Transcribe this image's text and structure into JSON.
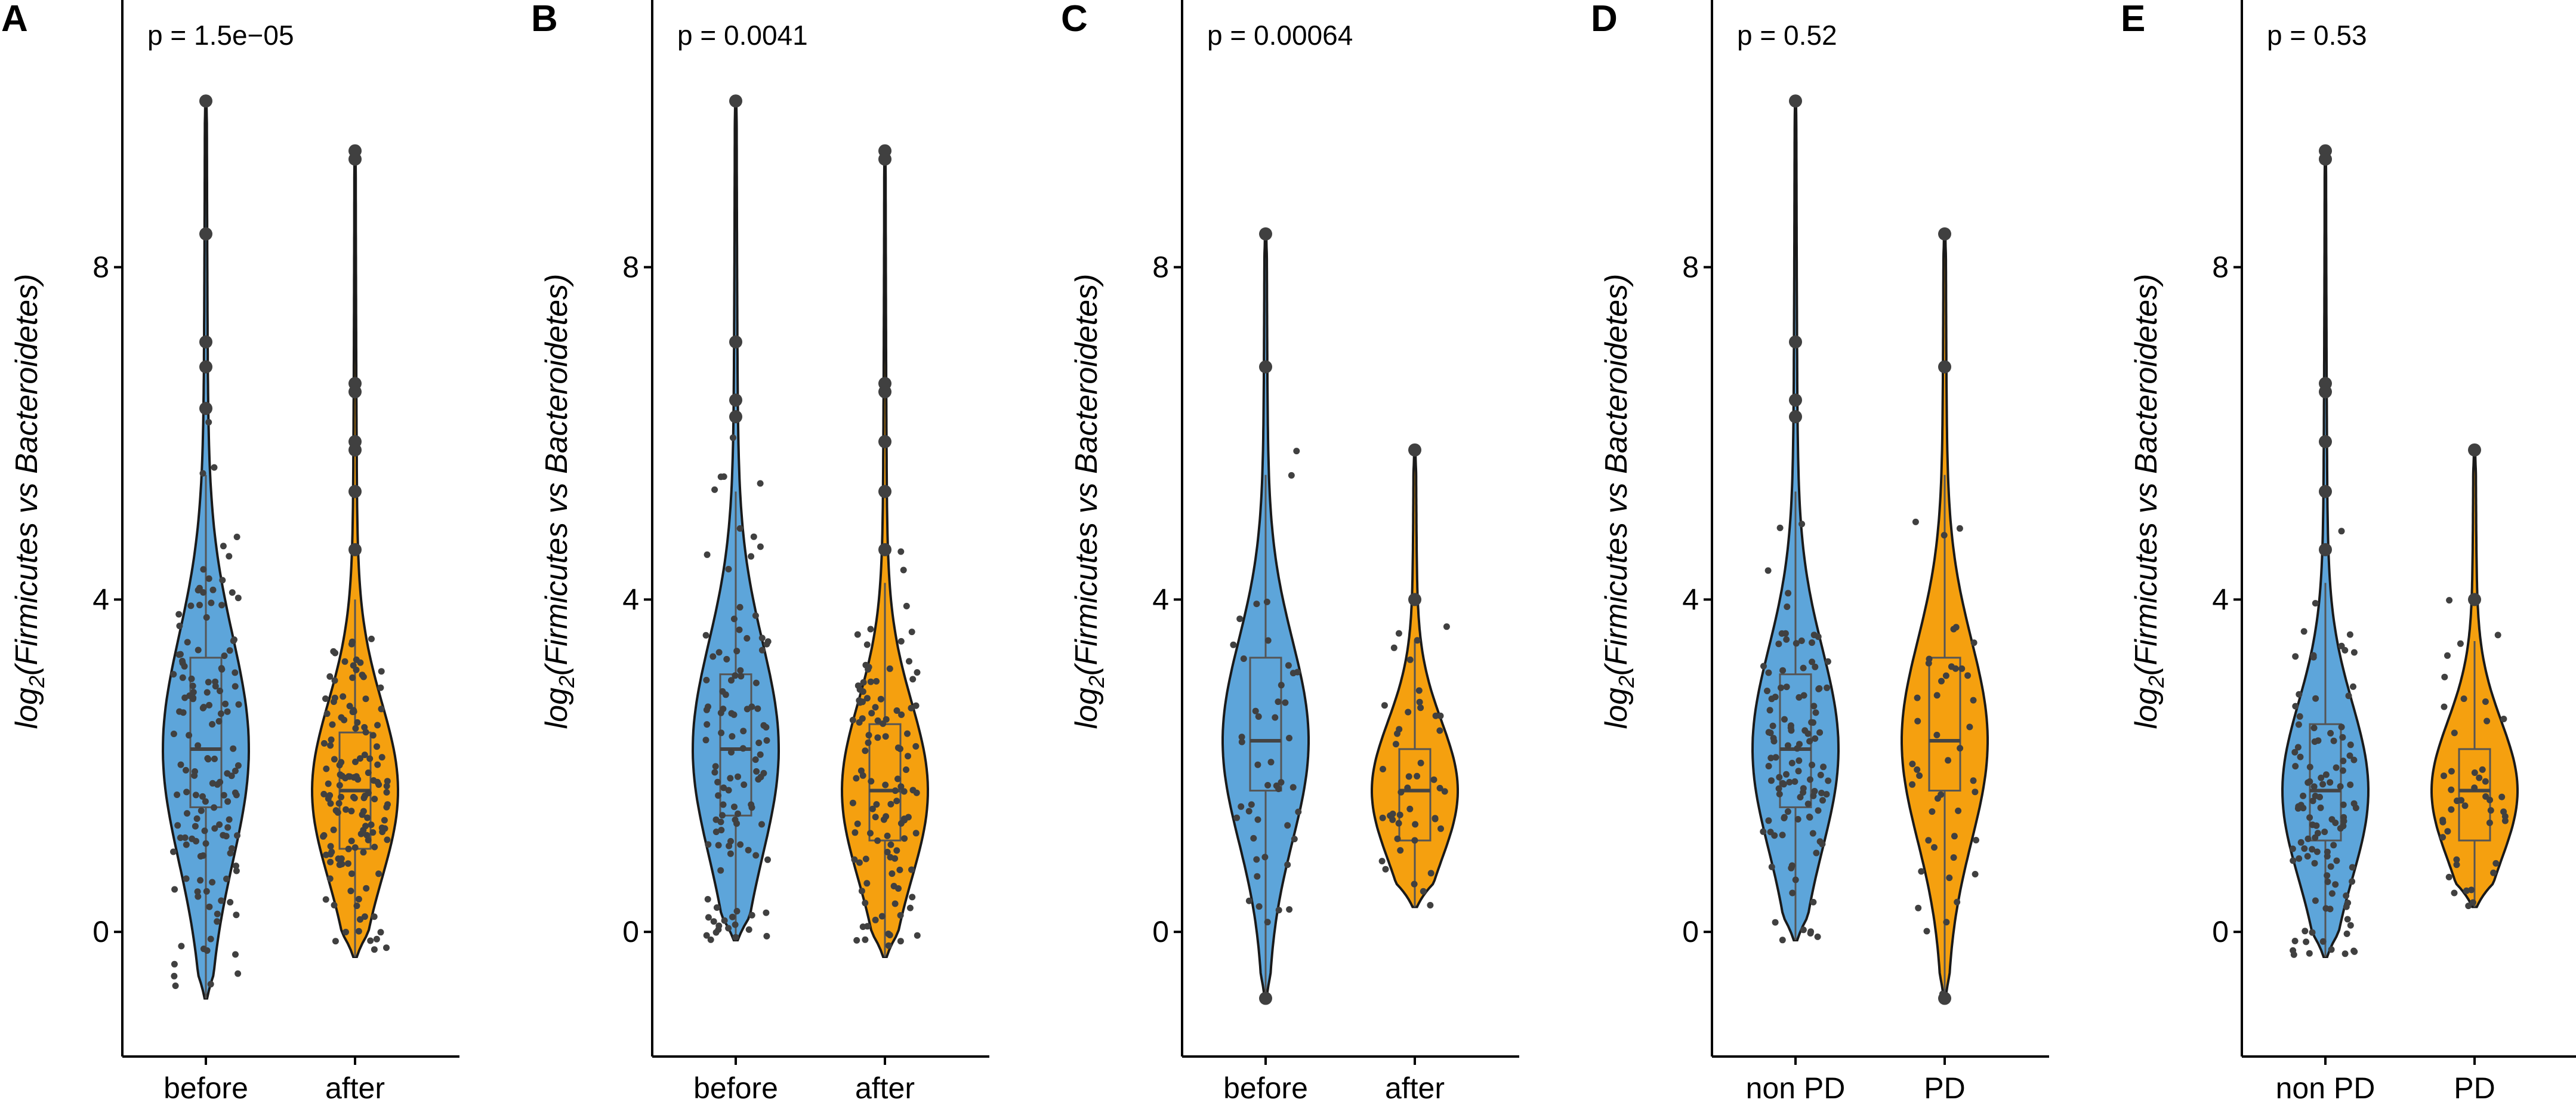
{
  "figure": {
    "y_axis_label_prefix": "log",
    "y_axis_label_sub": "2",
    "y_axis_label_body": "(Firmicutes vs Bacteroidetes)"
  },
  "colors": {
    "group1": "#5DA5DA",
    "group2": "#F5A00F",
    "points": "#404040",
    "outline": "#1a1a1a"
  },
  "chart_data": [
    {
      "panel": "A",
      "type": "violin",
      "annotation": "p = 1.5e−05",
      "categories": [
        "before",
        "after"
      ],
      "ylabel": "log2(Firmicutes vs Bacteroidetes)",
      "ylim": [
        -1.5,
        11
      ],
      "yticks": [
        0,
        4,
        8
      ],
      "groups": [
        {
          "name": "before",
          "min": -0.8,
          "max": 10.0,
          "q1": 1.5,
          "median": 2.2,
          "q3": 3.3,
          "whisker_low": -0.8,
          "whisker_high": 5.5,
          "n_points": 140,
          "outliers": [
            10.0,
            8.4,
            7.1,
            6.8,
            6.3
          ]
        },
        {
          "name": "after",
          "min": -0.3,
          "max": 9.4,
          "q1": 1.0,
          "median": 1.7,
          "q3": 2.4,
          "whisker_low": -0.3,
          "whisker_high": 4.0,
          "n_points": 140,
          "outliers": [
            9.4,
            9.3,
            6.6,
            6.5,
            5.9,
            5.8,
            5.3,
            4.6
          ]
        }
      ]
    },
    {
      "panel": "B",
      "type": "violin",
      "annotation": "p = 0.0041",
      "categories": [
        "before",
        "after"
      ],
      "ylabel": "log2(Firmicutes vs Bacteroidetes)",
      "ylim": [
        -1.5,
        11
      ],
      "yticks": [
        0,
        4,
        8
      ],
      "groups": [
        {
          "name": "before",
          "min": -0.1,
          "max": 10.0,
          "q1": 1.4,
          "median": 2.2,
          "q3": 3.1,
          "whisker_low": -0.1,
          "whisker_high": 5.3,
          "n_points": 110,
          "outliers": [
            10.0,
            7.1,
            6.4,
            6.2
          ]
        },
        {
          "name": "after",
          "min": -0.3,
          "max": 9.4,
          "q1": 1.1,
          "median": 1.7,
          "q3": 2.5,
          "whisker_low": -0.3,
          "whisker_high": 4.2,
          "n_points": 110,
          "outliers": [
            9.4,
            9.3,
            6.6,
            6.5,
            5.9,
            5.3,
            4.6
          ]
        }
      ]
    },
    {
      "panel": "C",
      "type": "violin",
      "annotation": "p = 0.00064",
      "categories": [
        "before",
        "after"
      ],
      "ylabel": "log2(Firmicutes vs Bacteroidetes)",
      "ylim": [
        -1.5,
        11
      ],
      "yticks": [
        0,
        4,
        8
      ],
      "groups": [
        {
          "name": "before",
          "min": -0.8,
          "max": 8.4,
          "q1": 1.7,
          "median": 2.3,
          "q3": 3.3,
          "whisker_low": -0.8,
          "whisker_high": 5.5,
          "n_points": 45,
          "outliers": [
            8.4,
            6.8,
            -0.8
          ]
        },
        {
          "name": "after",
          "min": 0.3,
          "max": 5.8,
          "q1": 1.1,
          "median": 1.7,
          "q3": 2.2,
          "whisker_low": 0.3,
          "whisker_high": 3.5,
          "n_points": 45,
          "outliers": [
            5.8,
            4.0
          ]
        }
      ]
    },
    {
      "panel": "D",
      "type": "violin",
      "annotation": "p = 0.52",
      "categories": [
        "non PD",
        "PD"
      ],
      "ylabel": "log2(Firmicutes vs Bacteroidetes)",
      "ylim": [
        -1.5,
        11
      ],
      "yticks": [
        0,
        4,
        8
      ],
      "groups": [
        {
          "name": "non PD",
          "min": -0.1,
          "max": 10.0,
          "q1": 1.5,
          "median": 2.2,
          "q3": 3.1,
          "whisker_low": -0.1,
          "whisker_high": 5.3,
          "n_points": 110,
          "outliers": [
            10.0,
            7.1,
            6.4,
            6.2
          ]
        },
        {
          "name": "PD",
          "min": -0.8,
          "max": 8.4,
          "q1": 1.7,
          "median": 2.3,
          "q3": 3.3,
          "whisker_low": -0.8,
          "whisker_high": 5.5,
          "n_points": 45,
          "outliers": [
            8.4,
            6.8,
            -0.8
          ]
        }
      ]
    },
    {
      "panel": "E",
      "type": "violin",
      "annotation": "p = 0.53",
      "categories": [
        "non PD",
        "PD"
      ],
      "ylabel": "log2(Firmicutes vs Bacteroidetes)",
      "ylim": [
        -1.5,
        11
      ],
      "yticks": [
        0,
        4,
        8
      ],
      "groups": [
        {
          "name": "non PD",
          "min": -0.3,
          "max": 9.4,
          "q1": 1.1,
          "median": 1.7,
          "q3": 2.5,
          "whisker_low": -0.3,
          "whisker_high": 4.2,
          "n_points": 110,
          "outliers": [
            9.4,
            9.3,
            6.6,
            6.5,
            5.9,
            5.3,
            4.6
          ]
        },
        {
          "name": "PD",
          "min": 0.3,
          "max": 5.8,
          "q1": 1.1,
          "median": 1.7,
          "q3": 2.2,
          "whisker_low": 0.3,
          "whisker_high": 3.5,
          "n_points": 45,
          "outliers": [
            5.8,
            4.0
          ]
        }
      ]
    }
  ]
}
